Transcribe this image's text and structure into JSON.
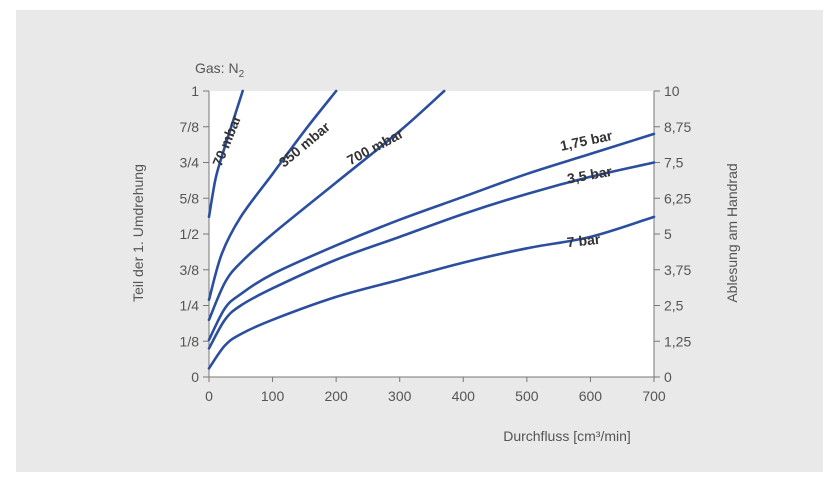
{
  "chart_data": {
    "type": "line",
    "gas_label": "Gas: N",
    "gas_subscript": "2",
    "xlabel": "Durchfluss [cm³/min]",
    "ylabel_left": "Teil der 1. Umdrehung",
    "ylabel_right": "Ablesung am Handrad",
    "xlim": [
      0,
      700
    ],
    "ylim": [
      0,
      1
    ],
    "x_ticks": [
      "0",
      "100",
      "200",
      "300",
      "400",
      "500",
      "600",
      "700"
    ],
    "y_ticks_left": [
      "0",
      "1/8",
      "1/4",
      "3/8",
      "1/2",
      "5/8",
      "3/4",
      "7/8",
      "1"
    ],
    "y_ticks_right": [
      "0",
      "1,25",
      "2,5",
      "3,75",
      "5",
      "6,25",
      "7,5",
      "8,75",
      "10"
    ],
    "grid": false,
    "colors": {
      "line": "#2b4f9e",
      "panel": "#e9e9e9",
      "plot": "#ffffff"
    },
    "series": [
      {
        "name": "70 mbar",
        "x": [
          0,
          10,
          20,
          30,
          40,
          53
        ],
        "y": [
          0.56,
          0.69,
          0.77,
          0.84,
          0.91,
          1.0
        ]
      },
      {
        "name": "350 mbar",
        "x": [
          0,
          20,
          50,
          100,
          150,
          200
        ],
        "y": [
          0.27,
          0.43,
          0.56,
          0.71,
          0.86,
          1.0
        ]
      },
      {
        "name": "700 mbar",
        "x": [
          0,
          25,
          50,
          100,
          200,
          300,
          370
        ],
        "y": [
          0.2,
          0.33,
          0.4,
          0.5,
          0.68,
          0.86,
          1.0
        ]
      },
      {
        "name": "1,75 bar",
        "x": [
          0,
          25,
          50,
          100,
          200,
          300,
          400,
          500,
          600,
          700
        ],
        "y": [
          0.13,
          0.24,
          0.29,
          0.36,
          0.46,
          0.55,
          0.63,
          0.71,
          0.78,
          0.85
        ]
      },
      {
        "name": "3,5 bar",
        "x": [
          0,
          25,
          50,
          100,
          200,
          300,
          400,
          500,
          600,
          700
        ],
        "y": [
          0.1,
          0.2,
          0.25,
          0.31,
          0.41,
          0.49,
          0.57,
          0.64,
          0.7,
          0.75
        ]
      },
      {
        "name": "7 bar",
        "x": [
          0,
          25,
          50,
          100,
          200,
          300,
          400,
          500,
          600,
          700
        ],
        "y": [
          0.03,
          0.11,
          0.15,
          0.2,
          0.28,
          0.34,
          0.4,
          0.45,
          0.49,
          0.56
        ]
      }
    ]
  }
}
